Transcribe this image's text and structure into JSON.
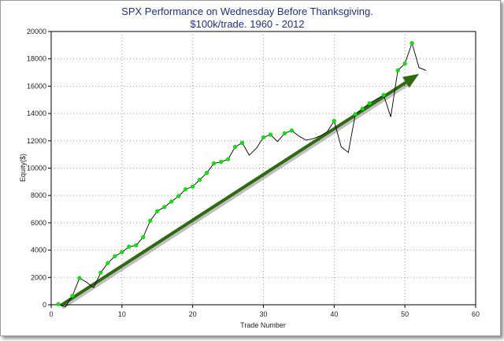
{
  "chart_data": {
    "type": "line",
    "title": "SPX Performance on Wednesday Before Thanksgiving.",
    "subtitle": "$100k/trade. 1960 - 2012",
    "xlabel": "Trade Number",
    "ylabel": "Equity($)",
    "xlim": [
      0,
      60
    ],
    "ylim": [
      0,
      20000
    ],
    "xticks": [
      0,
      10,
      20,
      30,
      40,
      50,
      60
    ],
    "yticks": [
      0,
      2000,
      4000,
      6000,
      8000,
      10000,
      12000,
      14000,
      16000,
      18000,
      20000
    ],
    "grid": true,
    "colors": {
      "line": "#000000",
      "marker": "#00ee00",
      "trend_arrow": "#2e6b0f",
      "title": "#1f2f8f"
    },
    "series": [
      {
        "x": [
          1,
          2,
          3,
          4,
          5,
          6,
          7,
          8,
          9,
          10,
          11,
          12,
          13,
          14,
          15,
          16,
          17,
          18,
          19,
          20,
          21,
          22,
          23,
          24,
          25,
          26,
          27,
          28,
          29,
          30,
          31,
          32,
          33,
          34,
          35,
          36,
          37,
          38,
          39,
          40,
          41,
          42,
          43,
          44,
          45,
          46,
          47,
          48,
          49,
          50,
          51,
          52,
          53
        ],
        "values": [
          50,
          -150,
          650,
          1950,
          1650,
          1250,
          2350,
          3050,
          3550,
          3850,
          4250,
          4350,
          4950,
          6150,
          6850,
          7150,
          7550,
          7950,
          8450,
          8650,
          9150,
          9650,
          10350,
          10450,
          10650,
          11550,
          11850,
          10950,
          11450,
          12250,
          12450,
          11950,
          12550,
          12750,
          12350,
          12050,
          12150,
          12350,
          12650,
          13450,
          11550,
          11150,
          13950,
          14350,
          14750,
          15050,
          15350,
          13750,
          17150,
          17650,
          19150,
          17350,
          17150
        ],
        "markers": [
          true,
          false,
          true,
          true,
          false,
          false,
          true,
          true,
          true,
          true,
          true,
          true,
          true,
          true,
          true,
          true,
          true,
          true,
          true,
          true,
          true,
          true,
          true,
          true,
          true,
          true,
          true,
          false,
          false,
          true,
          true,
          false,
          true,
          true,
          false,
          false,
          false,
          false,
          false,
          true,
          false,
          false,
          true,
          true,
          true,
          false,
          true,
          false,
          true,
          true,
          true,
          false,
          false
        ]
      }
    ],
    "trend_arrow": {
      "from": [
        1.5,
        0
      ],
      "to": [
        52,
        16900
      ]
    }
  }
}
